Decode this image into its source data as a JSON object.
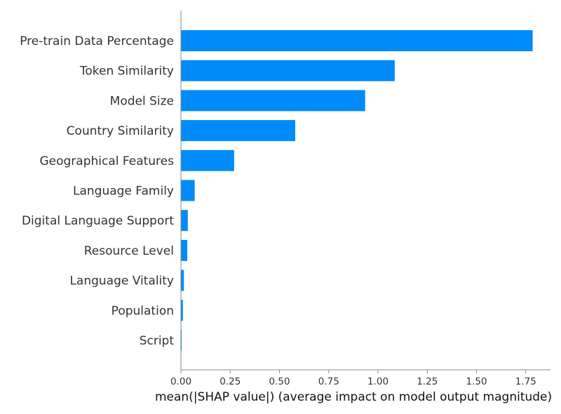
{
  "chart_data": {
    "type": "bar",
    "orientation": "horizontal",
    "categories": [
      "Pre-train Data Percentage",
      "Token Similarity",
      "Model Size",
      "Country Similarity",
      "Geographical Features",
      "Language Family",
      "Digital Language Support",
      "Resource Level",
      "Language Vitality",
      "Population",
      "Script"
    ],
    "values": [
      1.785,
      1.085,
      0.935,
      0.58,
      0.27,
      0.07,
      0.035,
      0.032,
      0.015,
      0.01,
      0.003
    ],
    "xlabel": "mean(|SHAP value|) (average impact on model output magnitude)",
    "ylabel": "",
    "xlim": [
      0,
      1.87
    ],
    "xticks": [
      "0.00",
      "0.25",
      "0.50",
      "0.75",
      "1.00",
      "1.25",
      "1.50",
      "1.75"
    ],
    "grid": false,
    "bar_color": "#008bfb",
    "axis_color": "#888888",
    "text_color": "#333333"
  }
}
